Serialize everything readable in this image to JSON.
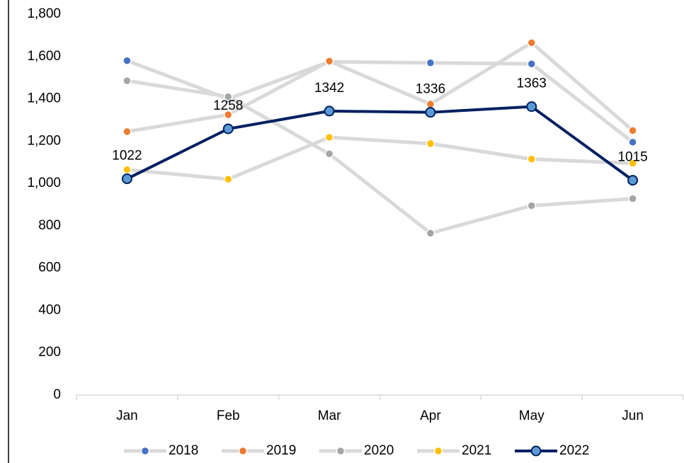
{
  "chart_data": {
    "type": "line",
    "categories": [
      "Jan",
      "Feb",
      "Mar",
      "Apr",
      "May",
      "Jun"
    ],
    "series": [
      {
        "name": "2018",
        "color": "#4472c4",
        "line_color": "#d9d9d9",
        "values": [
          1580,
          1400,
          1575,
          1570,
          1565,
          1195
        ]
      },
      {
        "name": "2019",
        "color": "#ed7d31",
        "line_color": "#d9d9d9",
        "values": [
          1245,
          1325,
          1578,
          1375,
          1665,
          1250
        ]
      },
      {
        "name": "2020",
        "color": "#a5a5a5",
        "line_color": "#d9d9d9",
        "values": [
          1485,
          1410,
          1140,
          765,
          895,
          928
        ]
      },
      {
        "name": "2021",
        "color": "#ffc000",
        "line_color": "#d9d9d9",
        "values": [
          1065,
          1020,
          1218,
          1188,
          1115,
          1095
        ]
      },
      {
        "name": "2022",
        "color": "#5b9bd5",
        "line_color": "#002060",
        "data_labels": true,
        "values": [
          1022,
          1258,
          1342,
          1336,
          1363,
          1015
        ]
      }
    ],
    "ylim": [
      0,
      1800
    ],
    "yticks": [
      0,
      200,
      400,
      600,
      800,
      {
        "value": 1000,
        "label": "1,000"
      },
      {
        "value": 1200,
        "label": "1,200"
      },
      {
        "value": 1400,
        "label": "1,400"
      },
      {
        "value": 1600,
        "label": "1,600"
      },
      {
        "value": 1800,
        "label": "1,800"
      }
    ],
    "grid": false,
    "legend": "bottom"
  }
}
